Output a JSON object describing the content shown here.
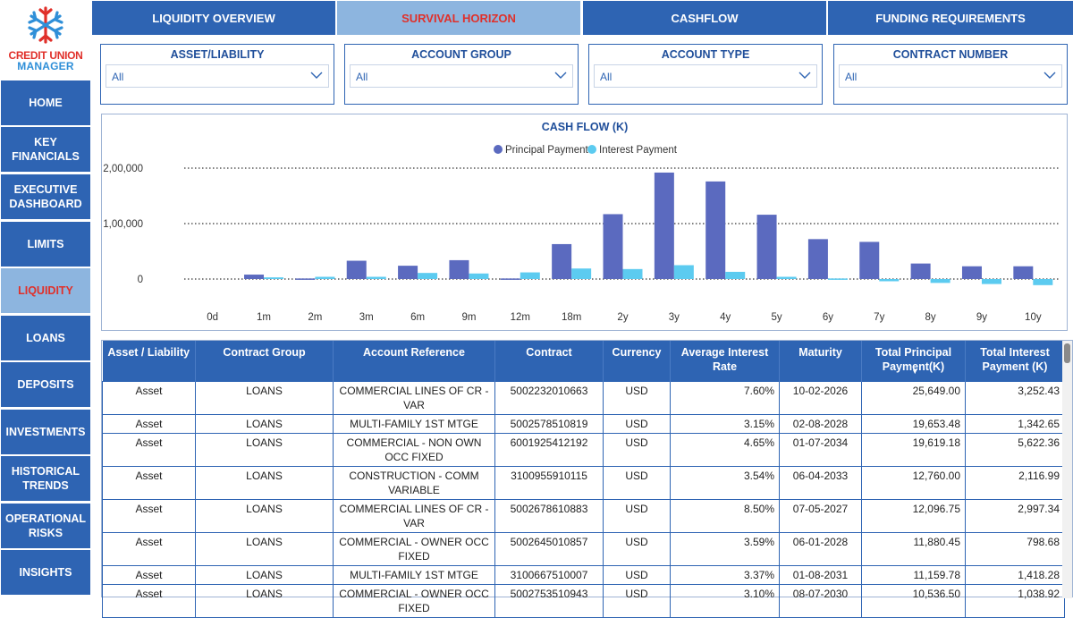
{
  "logo": {
    "line1": "CREDIT UNION",
    "line2": "MANAGER"
  },
  "nav": [
    {
      "label": "HOME",
      "active": false
    },
    {
      "label": "KEY FINANCIALS",
      "active": false
    },
    {
      "label": "EXECUTIVE DASHBOARD",
      "active": false
    },
    {
      "label": "LIMITS",
      "active": false
    },
    {
      "label": "LIQUIDITY",
      "active": true
    },
    {
      "label": "LOANS",
      "active": false
    },
    {
      "label": "DEPOSITS",
      "active": false
    },
    {
      "label": "INVESTMENTS",
      "active": false
    },
    {
      "label": "HISTORICAL TRENDS",
      "active": false
    },
    {
      "label": "OPERATIONAL RISKS",
      "active": false
    },
    {
      "label": "INSIGHTS",
      "active": false
    }
  ],
  "tabs": [
    {
      "label": "LIQUIDITY OVERVIEW",
      "active": false
    },
    {
      "label": "SURVIVAL HORIZON",
      "active": true
    },
    {
      "label": "CASHFLOW",
      "active": false
    },
    {
      "label": "FUNDING REQUIREMENTS",
      "active": false
    }
  ],
  "filters": [
    {
      "title": "ASSET/LIABILITY",
      "value": "All"
    },
    {
      "title": "ACCOUNT GROUP",
      "value": "All"
    },
    {
      "title": "ACCOUNT TYPE",
      "value": "All"
    },
    {
      "title": "CONTRACT NUMBER",
      "value": "All"
    }
  ],
  "colors": {
    "primary": "#2e64b3",
    "active_tab": "#8db5df",
    "active_text": "#e0302a",
    "principal": "#5b6abf",
    "interest": "#5ccbf0"
  },
  "chart_data": {
    "type": "bar",
    "title": "CASH FLOW (K)",
    "categories": [
      "0d",
      "1m",
      "2m",
      "3m",
      "6m",
      "9m",
      "12m",
      "18m",
      "2y",
      "3y",
      "4y",
      "5y",
      "6y",
      "7y",
      "8y",
      "9y",
      "10y"
    ],
    "series": [
      {
        "name": "Principal Payment",
        "values": [
          0,
          8000,
          1000,
          33000,
          24000,
          34000,
          1000,
          63000,
          117000,
          192000,
          176000,
          116000,
          72000,
          67000,
          28000,
          23000,
          23000
        ]
      },
      {
        "name": "Interest Payment",
        "values": [
          0,
          3000,
          4000,
          4000,
          11000,
          10000,
          12000,
          19000,
          18000,
          25000,
          13000,
          4000,
          1000,
          -4000,
          -7000,
          -9000,
          -11000
        ]
      }
    ],
    "ylim": [
      -20000,
      210000
    ],
    "yticks": [
      0,
      100000,
      200000
    ],
    "ytick_labels": [
      "0",
      "1,00,000",
      "2,00,000"
    ],
    "legend_position": "top-center",
    "grid": "dotted horizontal"
  },
  "table": {
    "columns": [
      "Asset / Liability",
      "Contract Group",
      "Account Reference",
      "Contract",
      "Currency",
      "Average Interest Rate",
      "Maturity",
      "Total Principal Payment(K)",
      "Total Interest Payment (K)"
    ],
    "sort_indicator": "▼",
    "rows": [
      [
        "Asset",
        "LOANS",
        "COMMERCIAL LINES OF CR - VAR",
        "5002232010663",
        "USD",
        "7.60%",
        "10-02-2026",
        "25,649.00",
        "3,252.43"
      ],
      [
        "Asset",
        "LOANS",
        "MULTI-FAMILY 1ST MTGE",
        "5002578510819",
        "USD",
        "3.15%",
        "02-08-2028",
        "19,653.48",
        "1,342.65"
      ],
      [
        "Asset",
        "LOANS",
        "COMMERCIAL - NON OWN OCC FIXED",
        "6001925412192",
        "USD",
        "4.65%",
        "01-07-2034",
        "19,619.18",
        "5,622.36"
      ],
      [
        "Asset",
        "LOANS",
        "CONSTRUCTION - COMM VARIABLE",
        "3100955910115",
        "USD",
        "3.54%",
        "06-04-2033",
        "12,760.00",
        "2,116.99"
      ],
      [
        "Asset",
        "LOANS",
        "COMMERCIAL LINES OF CR - VAR",
        "5002678610883",
        "USD",
        "8.50%",
        "07-05-2027",
        "12,096.75",
        "2,997.34"
      ],
      [
        "Asset",
        "LOANS",
        "COMMERCIAL - OWNER OCC FIXED",
        "5002645010857",
        "USD",
        "3.59%",
        "06-01-2028",
        "11,880.45",
        "798.68"
      ],
      [
        "Asset",
        "LOANS",
        "MULTI-FAMILY 1ST MTGE",
        "3100667510007",
        "USD",
        "3.37%",
        "01-08-2031",
        "11,159.78",
        "1,418.28"
      ],
      [
        "Asset",
        "LOANS",
        "COMMERCIAL - OWNER OCC FIXED",
        "5002753510943",
        "USD",
        "3.10%",
        "08-07-2030",
        "10,536.50",
        "1,038.92"
      ]
    ]
  }
}
